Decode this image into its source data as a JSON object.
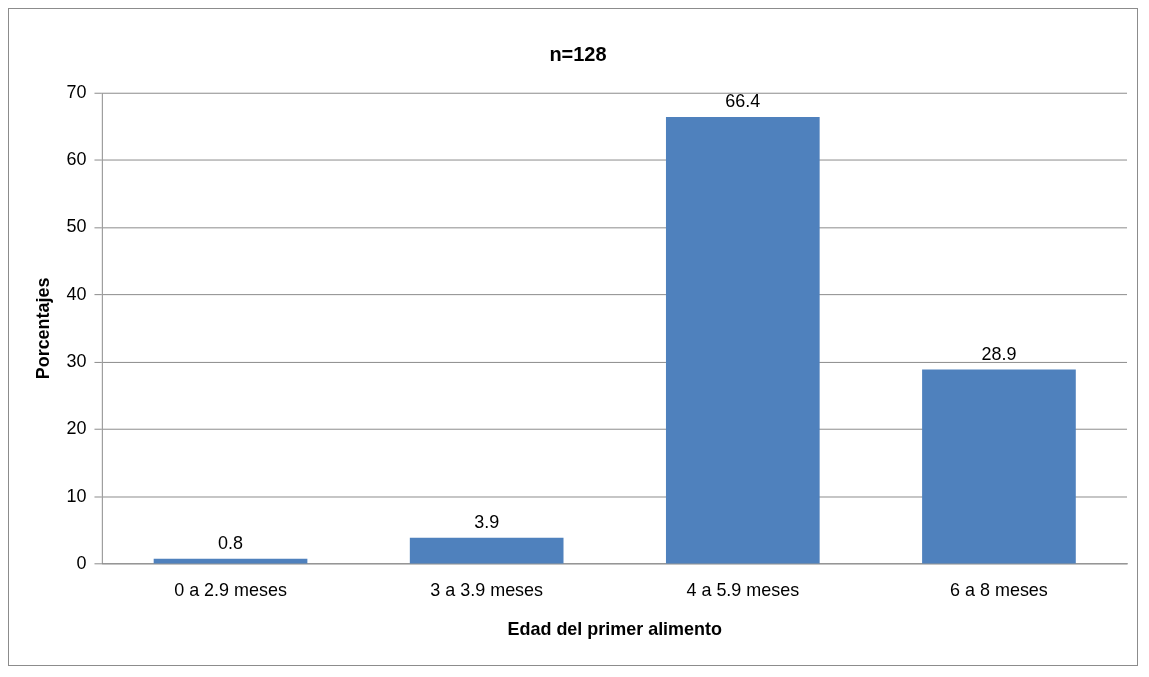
{
  "chart_data": {
    "type": "bar",
    "title": "n=128",
    "xlabel": "Edad del primer alimento",
    "ylabel": "Porcentajes",
    "categories": [
      "0 a 2.9 meses",
      "3 a 3.9 meses",
      "4 a 5.9 meses",
      "6 a 8 meses"
    ],
    "values": [
      0.8,
      3.9,
      66.4,
      28.9
    ],
    "color": "#4f81bd",
    "ylim": [
      0,
      70
    ],
    "yticks": [
      0,
      10,
      20,
      30,
      40,
      50,
      60,
      70
    ],
    "grid": "y",
    "legend": false,
    "data_labels": true
  }
}
